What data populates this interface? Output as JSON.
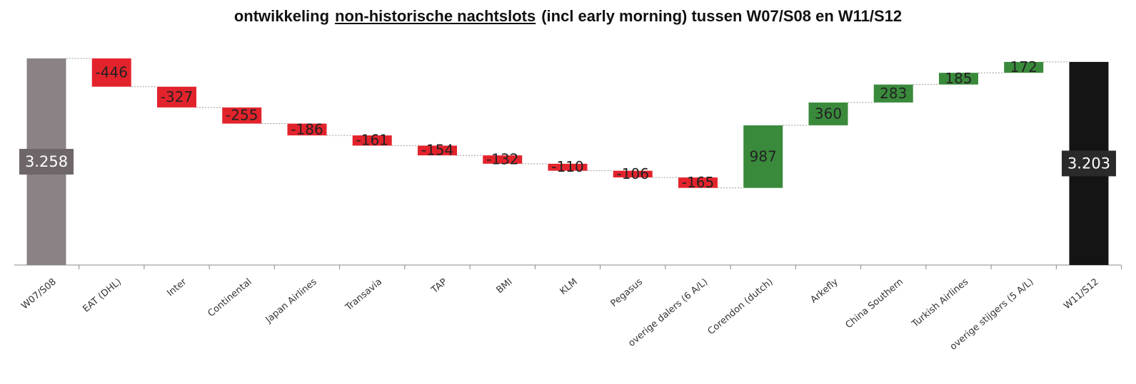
{
  "chart_data": {
    "type": "waterfall",
    "title": [
      "ontwikkeling",
      "non-historische nachtslots",
      "(incl early morning) tussen W07/S08 en W11/S12"
    ],
    "categories": [
      "W07/S08",
      "EAT (DHL)",
      "Inter",
      "Continental",
      "Japan Airlines",
      "Transavia",
      "TAP",
      "BMI",
      "KLM",
      "Pegasus",
      "overige dalers (6 A/L)",
      "Corendon (dutch)",
      "Arkefly",
      "China Southern",
      "Turkish Airlines",
      "overige stijgers (5 A/L)",
      "W11/S12"
    ],
    "values": [
      3258,
      -446,
      -327,
      -255,
      -186,
      -161,
      -154,
      -132,
      -110,
      -106,
      -165,
      987,
      360,
      283,
      185,
      172,
      3203
    ],
    "value_labels": [
      "3.258",
      "-446",
      "-327",
      "-255",
      "-186",
      "-161",
      "-154",
      "-132",
      "-110",
      "-106",
      "-165",
      "987",
      "360",
      "283",
      "185",
      "172",
      "3.203"
    ],
    "colors": [
      "#8a8284",
      "#e3232c",
      "#e3232c",
      "#e3232c",
      "#e3232c",
      "#e3232c",
      "#e3232c",
      "#e3232c",
      "#e3232c",
      "#e3232c",
      "#e3232c",
      "#3a8a3c",
      "#3a8a3c",
      "#3a8a3c",
      "#3a8a3c",
      "#3a8a3c",
      "#141414"
    ]
  }
}
